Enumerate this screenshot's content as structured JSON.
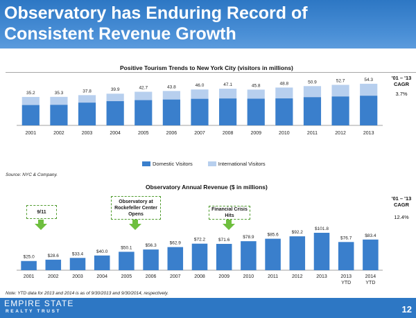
{
  "header": {
    "title_line1": "Observatory has Enduring Record of",
    "title_line2": "Consistent Revenue Growth"
  },
  "tourism_chart": {
    "title": "Positive Tourism Trends to New York City (visitors in millions)",
    "cagr_label": "'01 – '13\nCAGR",
    "cagr_value": "3.7%",
    "legend": [
      "Domestic Visitors",
      "International Visitors"
    ]
  },
  "revenue_chart": {
    "title": "Observatory Annual Revenue ($ in millions)",
    "cagr_label": "'01 – '13\nCAGR",
    "cagr_value": "12.4%",
    "callouts": {
      "nine_eleven": "9/11",
      "rockefeller": "Observatory at Rockefeller Center Opens",
      "crisis": "Financial Crisis Hits"
    }
  },
  "source": "Source:  NYC & Company.",
  "note": "Note:  YTD data for 2013 and 2014 is as of 9/30/2013 and 9/30/2014, respectively.",
  "footer": {
    "logo_line1": "EMPIRE STATE",
    "logo_line2": "REALTY TRUST",
    "page_number": "12"
  },
  "colors": {
    "header": "#2d77c4",
    "bar_dark": "#3a7fcc",
    "bar_light": "#b7cfee",
    "arrow": "#6fbf3f"
  },
  "chart_data": [
    {
      "type": "bar",
      "title": "Positive Tourism Trends to New York City (visitors in millions)",
      "categories": [
        "2001",
        "2002",
        "2003",
        "2004",
        "2005",
        "2006",
        "2007",
        "2008",
        "2009",
        "2010",
        "2011",
        "2012",
        "2013"
      ],
      "totals_labels": [
        "35.2",
        "35.3",
        "37.8",
        "39.9",
        "42.7",
        "43.8",
        "46.0",
        "47.1",
        "45.8",
        "48.8",
        "50.9",
        "52.7",
        "54.3"
      ],
      "series": [
        {
          "name": "Domestic Visitors",
          "values": [
            29.5,
            29.8,
            33.0,
            35.1,
            36.6,
            37.5,
            38.5,
            39.0,
            38.7,
            39.1,
            40.9,
            41.9,
            43.0
          ]
        },
        {
          "name": "International Visitors",
          "values": [
            5.7,
            5.5,
            4.8,
            4.8,
            6.1,
            6.3,
            7.5,
            8.1,
            7.1,
            9.7,
            10.0,
            10.8,
            11.3
          ]
        }
      ],
      "stacked": true,
      "ylim": [
        0,
        60
      ]
    },
    {
      "type": "bar",
      "title": "Observatory Annual Revenue ($ in millions)",
      "categories": [
        "2001",
        "2002",
        "2003",
        "2004",
        "2005",
        "2006",
        "2007",
        "2008",
        "2009",
        "2010",
        "2011",
        "2012",
        "2013",
        "2013\nYTD",
        "2014\nYTD"
      ],
      "values": [
        25.0,
        28.6,
        33.4,
        40.0,
        50.1,
        56.3,
        62.9,
        72.2,
        71.6,
        78.9,
        85.6,
        92.2,
        101.8,
        76.7,
        83.4
      ],
      "labels": [
        "$25.0",
        "$28.6",
        "$33.4",
        "$40.0",
        "$50.1",
        "$56.3",
        "$62.9",
        "$72.2",
        "$71.6",
        "$78.9",
        "$85.6",
        "$92.2",
        "$101.8",
        "$76.7",
        "$83.4"
      ],
      "ylim": [
        0,
        110
      ]
    }
  ]
}
